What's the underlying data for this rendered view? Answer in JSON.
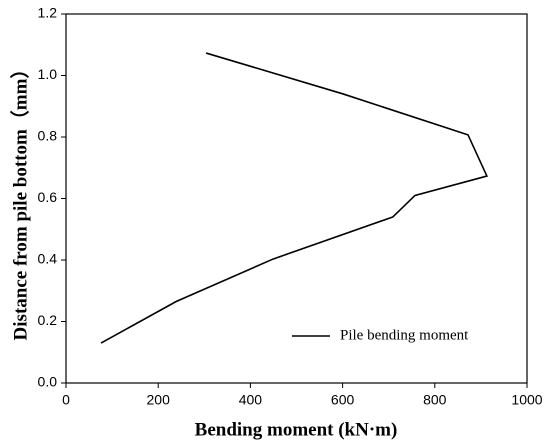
{
  "chart_data": {
    "type": "line",
    "x": [
      76,
      239,
      449,
      709,
      757,
      913,
      872,
      601,
      304
    ],
    "series": [
      {
        "name": "Pile bending moment",
        "color": "#000000",
        "values": [
          0.13,
          0.265,
          0.403,
          0.54,
          0.61,
          0.673,
          0.807,
          0.94,
          1.073
        ]
      }
    ],
    "xlabel": "Bending moment (kN·m)",
    "ylabel": "Distance from pile bottom（mm）",
    "xlim": [
      0,
      1000
    ],
    "ylim": [
      0,
      1.2
    ],
    "xticks": [
      0,
      200,
      400,
      600,
      800,
      1000
    ],
    "yticks": [
      {
        "value": 0,
        "label": "0.0"
      },
      0.2,
      0.4,
      0.6,
      0.8,
      {
        "value": 1,
        "label": "1.0"
      },
      1.2
    ],
    "legend": "lower right"
  }
}
